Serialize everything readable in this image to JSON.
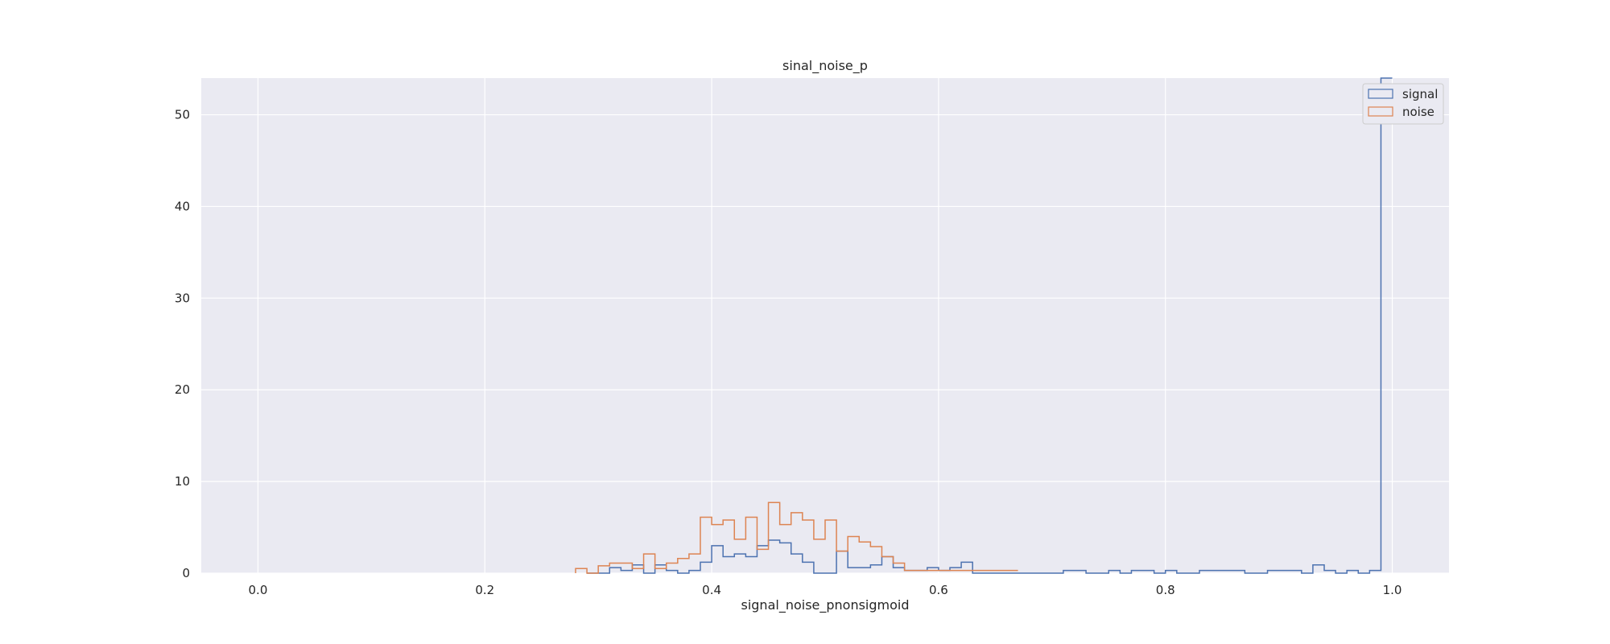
{
  "chart_data": {
    "type": "histogram",
    "title": "sinal_noise_p",
    "xlabel": "signal_noise_pnonsigmoid",
    "ylabel": "",
    "xlim": [
      -0.05,
      1.05
    ],
    "ylim": [
      0,
      54
    ],
    "xticks": [
      0.0,
      0.2,
      0.4,
      0.6,
      0.8,
      1.0
    ],
    "xtick_labels": [
      "0.0",
      "0.2",
      "0.4",
      "0.6",
      "0.8",
      "1.0"
    ],
    "yticks": [
      0,
      10,
      20,
      30,
      40,
      50
    ],
    "ytick_labels": [
      "0",
      "10",
      "20",
      "30",
      "40",
      "50"
    ],
    "grid": true,
    "legend_position": "top-right",
    "colors": {
      "background": "#eaeaf2",
      "grid": "#ffffff",
      "signal": "#4c72b0",
      "noise": "#dd8452"
    },
    "series": [
      {
        "name": "signal",
        "bins": [
          0.29,
          0.3,
          0.31,
          0.32,
          0.33,
          0.34,
          0.35,
          0.36,
          0.37,
          0.38,
          0.39,
          0.4,
          0.41,
          0.42,
          0.43,
          0.44,
          0.45,
          0.46,
          0.47,
          0.48,
          0.49,
          0.5,
          0.51,
          0.52,
          0.53,
          0.54,
          0.55,
          0.56,
          0.57,
          0.58,
          0.59,
          0.6,
          0.61,
          0.62,
          0.63,
          0.64,
          0.65,
          0.66,
          0.67,
          0.68,
          0.69,
          0.7,
          0.71,
          0.72,
          0.73,
          0.74,
          0.75,
          0.76,
          0.77,
          0.78,
          0.79,
          0.8,
          0.81,
          0.82,
          0.83,
          0.84,
          0.85,
          0.86,
          0.87,
          0.88,
          0.89,
          0.9,
          0.91,
          0.92,
          0.93,
          0.94,
          0.95,
          0.96,
          0.97,
          0.98,
          0.99,
          1.0
        ],
        "counts": [
          0,
          0,
          0.6,
          0.3,
          0.9,
          0,
          0.9,
          0.3,
          0,
          0.3,
          1.2,
          3.0,
          1.8,
          2.1,
          1.8,
          3.0,
          3.6,
          3.3,
          2.1,
          1.2,
          0,
          0,
          2.4,
          0.6,
          0.6,
          0.9,
          1.8,
          0.6,
          0.3,
          0.3,
          0.6,
          0.3,
          0.6,
          1.2,
          0,
          0,
          0,
          0,
          0,
          0,
          0,
          0,
          0.3,
          0.3,
          0,
          0,
          0.3,
          0,
          0.3,
          0.3,
          0,
          0.3,
          0,
          0,
          0.3,
          0.3,
          0.3,
          0.3,
          0,
          0,
          0.3,
          0.3,
          0.3,
          0,
          0.9,
          0.3,
          0,
          0.3,
          0,
          0.3,
          54
        ]
      },
      {
        "name": "noise",
        "bins": [
          0.28,
          0.29,
          0.3,
          0.31,
          0.32,
          0.33,
          0.34,
          0.35,
          0.36,
          0.37,
          0.38,
          0.39,
          0.4,
          0.41,
          0.42,
          0.43,
          0.44,
          0.45,
          0.46,
          0.47,
          0.48,
          0.49,
          0.5,
          0.51,
          0.52,
          0.53,
          0.54,
          0.55,
          0.56,
          0.57,
          0.58,
          0.59,
          0.6,
          0.61,
          0.62,
          0.63,
          0.64,
          0.65,
          0.66,
          0.67
        ],
        "counts": [
          0.5,
          0,
          0.8,
          1.1,
          1.1,
          0.5,
          2.1,
          0.5,
          1.1,
          1.6,
          2.1,
          6.1,
          5.3,
          5.8,
          3.7,
          6.1,
          2.6,
          7.7,
          5.3,
          6.6,
          5.8,
          3.7,
          5.8,
          2.4,
          4.0,
          3.4,
          2.9,
          1.8,
          1.1,
          0.3,
          0.3,
          0.3,
          0.3,
          0.3,
          0.3,
          0.3,
          0.3,
          0.3,
          0.3
        ]
      }
    ]
  }
}
